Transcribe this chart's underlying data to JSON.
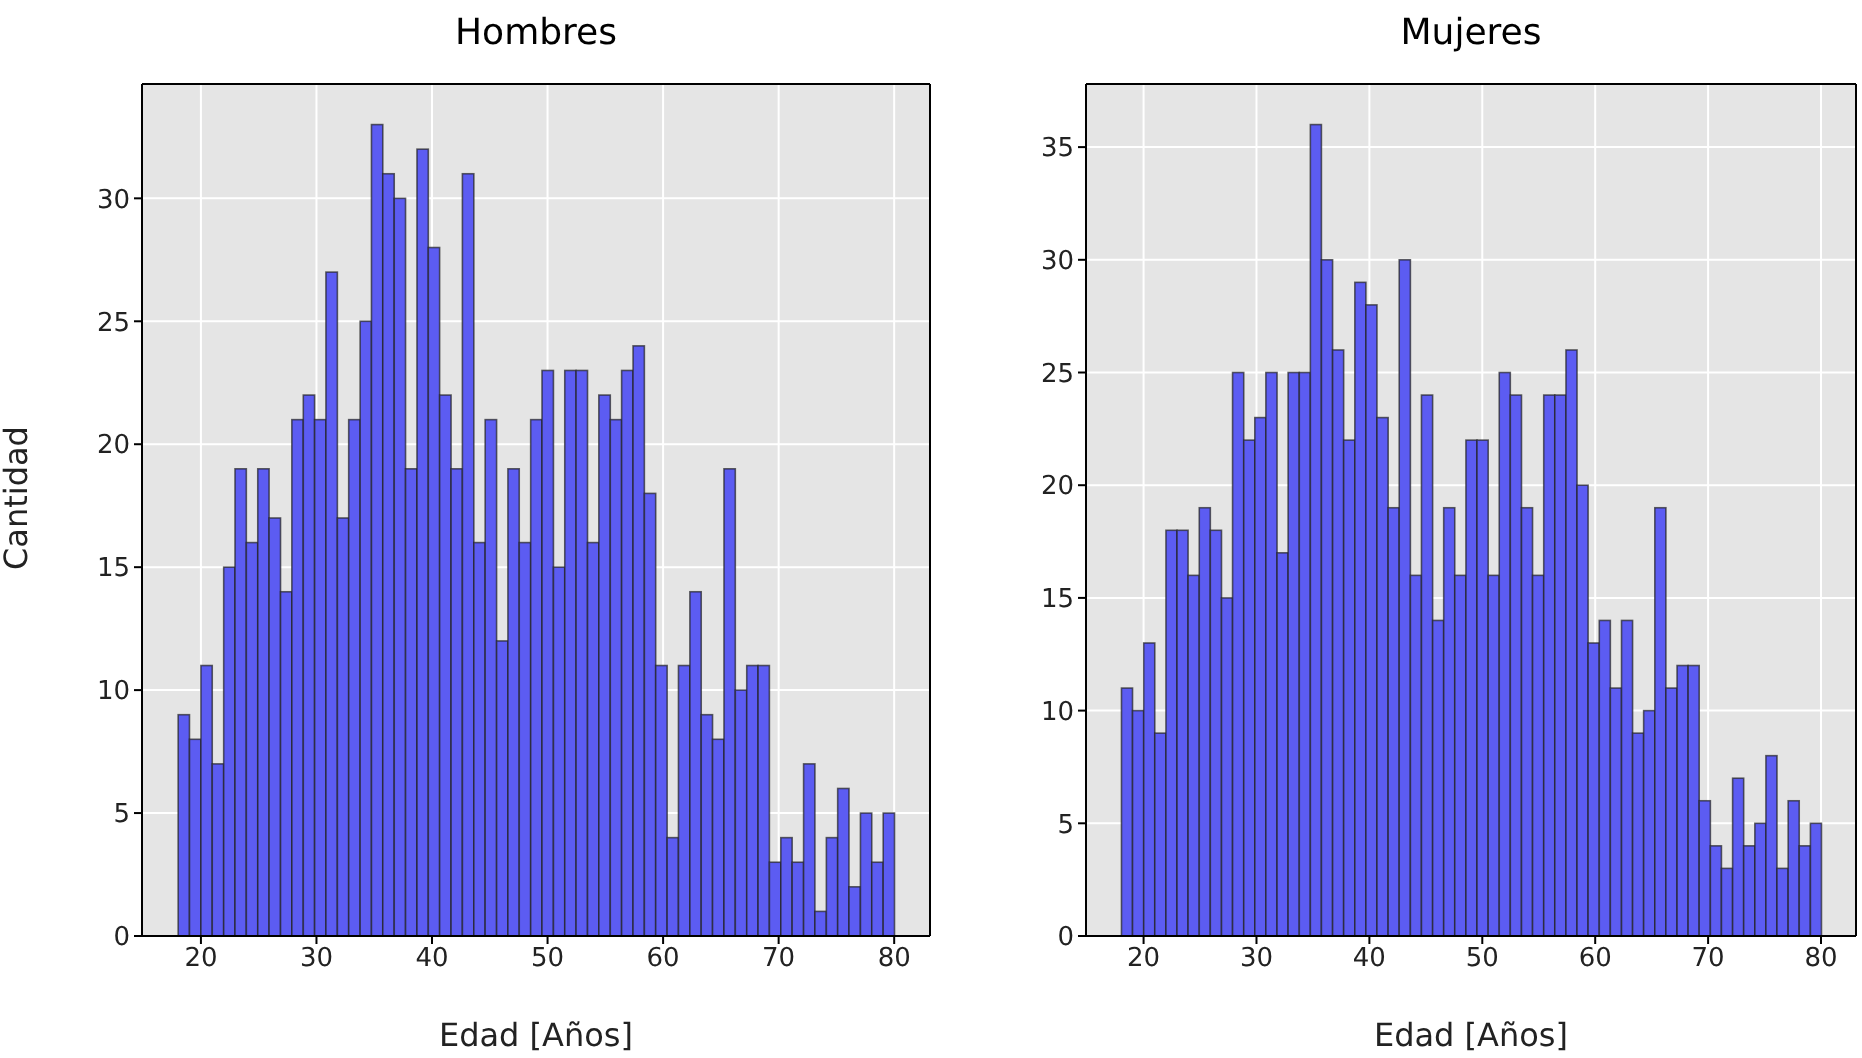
{
  "chart_data": [
    {
      "type": "histogram",
      "title": "Hombres",
      "xlabel": "Edad [Años]",
      "ylabel": "Cantidad",
      "color": "#5c5cf2",
      "grid": true,
      "xlim": [
        14.9,
        83.1
      ],
      "xticks": [
        20,
        30,
        40,
        50,
        60,
        70,
        80
      ],
      "ylim": [
        0,
        34.65
      ],
      "yticks": [
        0,
        5,
        10,
        15,
        20,
        25,
        30
      ],
      "bins": [
        18,
        18.98,
        19.97,
        20.95,
        21.94,
        22.92,
        23.9,
        24.89,
        25.87,
        26.86,
        27.84,
        28.83,
        29.81,
        30.79,
        31.78,
        32.76,
        33.75,
        34.73,
        35.71,
        36.7,
        37.68,
        38.67,
        39.65,
        40.63,
        41.62,
        42.6,
        43.59,
        44.57,
        45.56,
        46.54,
        47.52,
        48.51,
        49.49,
        50.48,
        51.46,
        52.44,
        53.43,
        54.41,
        55.4,
        56.38,
        57.37,
        58.35,
        59.33,
        60.32,
        61.3,
        62.29,
        63.27,
        64.25,
        65.24,
        66.22,
        67.21,
        68.19,
        69.17,
        70.16,
        71.14,
        72.13,
        73.11,
        74.1,
        75.08,
        76.06,
        77.05,
        78.03,
        79.02,
        80
      ],
      "values": [
        9,
        8,
        11,
        7,
        15,
        19,
        16,
        19,
        17,
        14,
        21,
        22,
        21,
        27,
        17,
        21,
        25,
        33,
        31,
        30,
        19,
        32,
        28,
        22,
        19,
        31,
        16,
        21,
        12,
        19,
        16,
        21,
        23,
        15,
        23,
        23,
        16,
        22,
        21,
        23,
        24,
        18,
        11,
        4,
        11,
        14,
        9,
        8,
        19,
        10,
        11,
        11,
        3,
        4,
        3,
        7,
        1,
        4,
        6,
        2,
        5,
        3,
        5
      ]
    },
    {
      "type": "histogram",
      "title": "Mujeres",
      "xlabel": "Edad [Años]",
      "color": "#5c5cf2",
      "grid": true,
      "xlim": [
        14.9,
        83.1
      ],
      "xticks": [
        20,
        30,
        40,
        50,
        60,
        70,
        80
      ],
      "ylim": [
        0,
        37.8
      ],
      "yticks": [
        0,
        5,
        10,
        15,
        20,
        25,
        30,
        35
      ],
      "bins": [
        18,
        18.98,
        19.97,
        20.95,
        21.94,
        22.92,
        23.9,
        24.89,
        25.87,
        26.86,
        27.84,
        28.83,
        29.81,
        30.79,
        31.78,
        32.76,
        33.75,
        34.73,
        35.71,
        36.7,
        37.68,
        38.67,
        39.65,
        40.63,
        41.62,
        42.6,
        43.59,
        44.57,
        45.56,
        46.54,
        47.52,
        48.51,
        49.49,
        50.48,
        51.46,
        52.44,
        53.43,
        54.41,
        55.4,
        56.38,
        57.37,
        58.35,
        59.33,
        60.32,
        61.3,
        62.29,
        63.27,
        64.25,
        65.24,
        66.22,
        67.21,
        68.19,
        69.17,
        70.16,
        71.14,
        72.13,
        73.11,
        74.1,
        75.08,
        76.06,
        77.05,
        78.03,
        79.02,
        80
      ],
      "values": [
        11,
        10,
        13,
        9,
        18,
        18,
        16,
        19,
        18,
        15,
        25,
        22,
        23,
        25,
        17,
        25,
        25,
        36,
        30,
        26,
        22,
        29,
        28,
        23,
        19,
        30,
        16,
        24,
        14,
        19,
        16,
        22,
        22,
        16,
        25,
        24,
        19,
        16,
        24,
        24,
        26,
        20,
        13,
        14,
        11,
        14,
        9,
        10,
        19,
        11,
        12,
        12,
        6,
        4,
        3,
        7,
        4,
        5,
        8,
        3,
        6,
        4,
        5
      ]
    }
  ]
}
